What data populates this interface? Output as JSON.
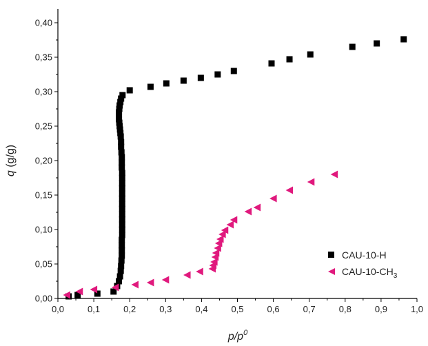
{
  "chart_data": {
    "type": "scatter",
    "xlabel_main": "p/p",
    "xlabel_sup": "0",
    "ylabel_main": "q",
    "ylabel_unit": " (g/g)",
    "xlim": [
      0.0,
      1.0
    ],
    "ylim": [
      0.0,
      0.42
    ],
    "x_ticks": [
      0.0,
      0.1,
      0.2,
      0.3,
      0.4,
      0.5,
      0.6,
      0.7,
      0.8,
      0.9,
      1.0
    ],
    "y_ticks": [
      0.0,
      0.05,
      0.1,
      0.15,
      0.2,
      0.25,
      0.3,
      0.35,
      0.4
    ],
    "x_tick_labels": [
      "0,0",
      "0,1",
      "0,2",
      "0,3",
      "0,4",
      "0,5",
      "0,6",
      "0,7",
      "0,8",
      "0,9",
      "1,0"
    ],
    "y_tick_labels": [
      "0,00",
      "0,05",
      "0,10",
      "0,15",
      "0,20",
      "0,25",
      "0,30",
      "0,35",
      "0,40"
    ],
    "grid": false,
    "legend_position": "bottom-right",
    "series": [
      {
        "name": "CAU-10-H",
        "legend_main": "CAU-10-H",
        "legend_sub": "",
        "marker": "square",
        "color": "#000000",
        "x": [
          0.03,
          0.055,
          0.11,
          0.155,
          0.165,
          0.17,
          0.173,
          0.175,
          0.176,
          0.177,
          0.178,
          0.178,
          0.178,
          0.178,
          0.179,
          0.179,
          0.179,
          0.179,
          0.179,
          0.179,
          0.179,
          0.179,
          0.179,
          0.179,
          0.179,
          0.179,
          0.179,
          0.178,
          0.178,
          0.178,
          0.177,
          0.176,
          0.176,
          0.175,
          0.174,
          0.173,
          0.172,
          0.171,
          0.17,
          0.17,
          0.17,
          0.171,
          0.172,
          0.174,
          0.176,
          0.18,
          0.2,
          0.258,
          0.302,
          0.35,
          0.398,
          0.445,
          0.49,
          0.595,
          0.645,
          0.703,
          0.82,
          0.888,
          0.963
        ],
        "y": [
          0.003,
          0.005,
          0.007,
          0.01,
          0.018,
          0.025,
          0.032,
          0.04,
          0.047,
          0.055,
          0.062,
          0.07,
          0.077,
          0.085,
          0.092,
          0.1,
          0.107,
          0.115,
          0.122,
          0.13,
          0.137,
          0.145,
          0.152,
          0.16,
          0.167,
          0.175,
          0.182,
          0.19,
          0.197,
          0.205,
          0.212,
          0.22,
          0.227,
          0.235,
          0.24,
          0.245,
          0.25,
          0.255,
          0.26,
          0.265,
          0.27,
          0.275,
          0.28,
          0.285,
          0.29,
          0.295,
          0.302,
          0.307,
          0.312,
          0.316,
          0.32,
          0.325,
          0.33,
          0.341,
          0.347,
          0.354,
          0.365,
          0.37,
          0.376
        ]
      },
      {
        "name": "CAU-10-CH3",
        "legend_main": "CAU-10-CH",
        "legend_sub": "3",
        "marker": "triangle-left",
        "color": "#e0197d",
        "x": [
          0.025,
          0.06,
          0.1,
          0.16,
          0.215,
          0.258,
          0.3,
          0.36,
          0.395,
          0.43,
          0.432,
          0.435,
          0.438,
          0.44,
          0.445,
          0.448,
          0.452,
          0.458,
          0.465,
          0.48,
          0.49,
          0.53,
          0.555,
          0.6,
          0.645,
          0.705,
          0.77
        ],
        "y": [
          0.005,
          0.01,
          0.013,
          0.016,
          0.02,
          0.023,
          0.027,
          0.034,
          0.039,
          0.043,
          0.048,
          0.053,
          0.06,
          0.066,
          0.073,
          0.08,
          0.086,
          0.093,
          0.099,
          0.107,
          0.114,
          0.126,
          0.132,
          0.145,
          0.157,
          0.169,
          0.18
        ]
      }
    ]
  }
}
